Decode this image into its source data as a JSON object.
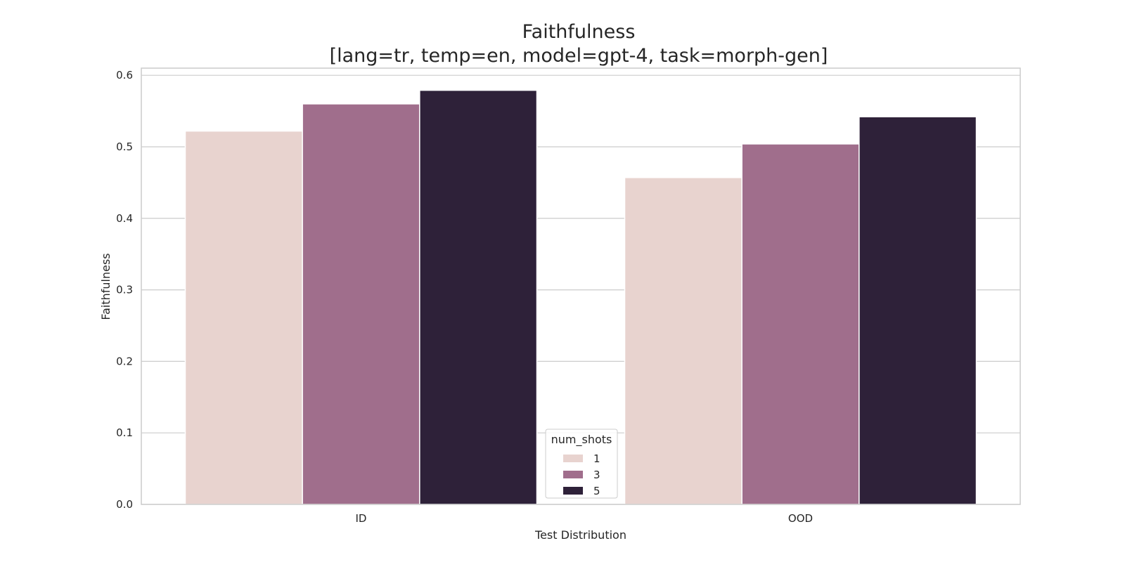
{
  "chart_data": {
    "type": "bar",
    "title": "Faithfulness",
    "subtitle": "[lang=tr, temp=en, model=gpt-4, task=morph-gen]",
    "xlabel": "Test Distribution",
    "ylabel": "Faithfulness",
    "categories": [
      "ID",
      "OOD"
    ],
    "ylim": [
      0,
      0.61
    ],
    "yticks": [
      "0.0",
      "0.1",
      "0.2",
      "0.3",
      "0.4",
      "0.5",
      "0.6"
    ],
    "grid": true,
    "legend": {
      "title": "num_shots",
      "placement": "bottom-center"
    },
    "series": [
      {
        "name": "1",
        "color": "#e8d3cf",
        "values": [
          0.522,
          0.457
        ]
      },
      {
        "name": "3",
        "color": "#a06e8c",
        "values": [
          0.56,
          0.504
        ]
      },
      {
        "name": "5",
        "color": "#2e2139",
        "values": [
          0.579,
          0.542
        ]
      }
    ]
  }
}
